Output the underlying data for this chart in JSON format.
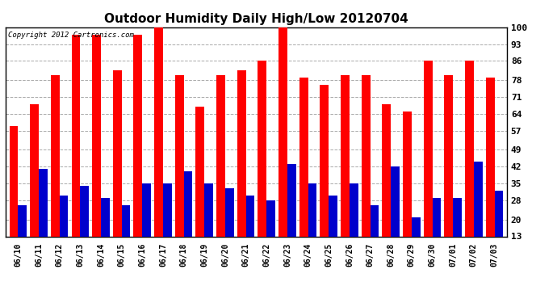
{
  "title": "Outdoor Humidity Daily High/Low 20120704",
  "copyright": "Copyright 2012 Cartronics.com",
  "dates": [
    "06/10",
    "06/11",
    "06/12",
    "06/13",
    "06/14",
    "06/15",
    "06/16",
    "06/17",
    "06/18",
    "06/19",
    "06/20",
    "06/21",
    "06/22",
    "06/23",
    "06/24",
    "06/25",
    "06/26",
    "06/27",
    "06/28",
    "06/29",
    "06/30",
    "07/01",
    "07/02",
    "07/03"
  ],
  "highs": [
    59,
    68,
    80,
    97,
    97,
    82,
    97,
    100,
    80,
    67,
    80,
    82,
    86,
    100,
    79,
    76,
    80,
    80,
    68,
    65,
    86,
    80,
    86,
    79
  ],
  "lows": [
    26,
    41,
    30,
    34,
    29,
    26,
    35,
    35,
    40,
    35,
    33,
    30,
    28,
    43,
    35,
    30,
    35,
    26,
    42,
    21,
    29,
    29,
    44,
    32
  ],
  "high_color": "#ff0000",
  "low_color": "#0000cc",
  "bg_color": "#ffffff",
  "grid_color": "#aaaaaa",
  "yticks": [
    13,
    20,
    28,
    35,
    42,
    49,
    57,
    64,
    71,
    78,
    86,
    93,
    100
  ],
  "ymin": 13,
  "ymax": 100,
  "bar_width": 0.42,
  "figwidth": 6.9,
  "figheight": 3.75,
  "dpi": 100
}
